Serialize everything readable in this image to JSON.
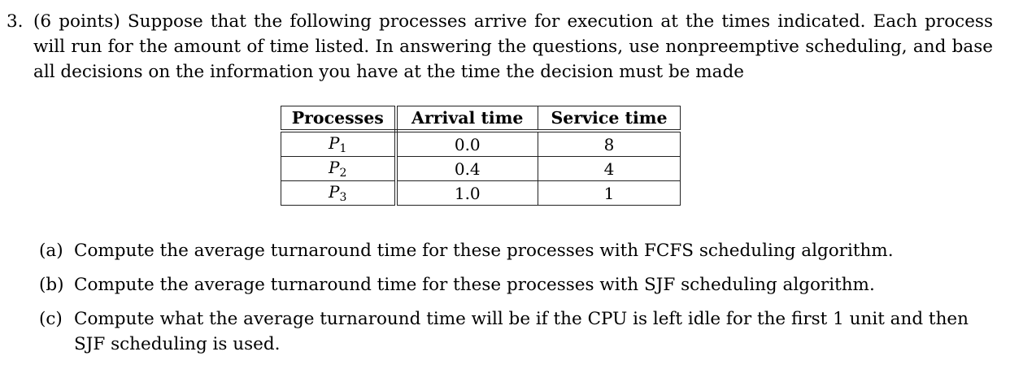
{
  "page": {
    "background_color": "#ffffff",
    "text_color": "#000000",
    "table_border_color": "#222222"
  },
  "question": {
    "number": "3.",
    "points": "(6 points)",
    "intro": "Suppose that the following processes arrive for execution at the times indicated. Each process will run for the amount of time listed. In answering the questions, use nonpreemptive scheduling, and base all decisions on the information you have at the time the decision must be made"
  },
  "table": {
    "headers": [
      "Processes",
      "Arrival time",
      "Service time"
    ],
    "rows": [
      {
        "process_base": "P",
        "process_sub": "1",
        "arrival": "0.0",
        "service": "8"
      },
      {
        "process_base": "P",
        "process_sub": "2",
        "arrival": "0.4",
        "service": "4"
      },
      {
        "process_base": "P",
        "process_sub": "3",
        "arrival": "1.0",
        "service": "1"
      }
    ]
  },
  "subquestions": [
    {
      "label": "(a)",
      "text": "Compute the average turnaround time for these processes with FCFS scheduling algorithm."
    },
    {
      "label": "(b)",
      "text": "Compute the average turnaround time for these processes with SJF scheduling algorithm."
    },
    {
      "label": "(c)",
      "text": "Compute what the average turnaround time will be if the CPU is left idle for the first 1 unit and then SJF scheduling is used."
    }
  ]
}
